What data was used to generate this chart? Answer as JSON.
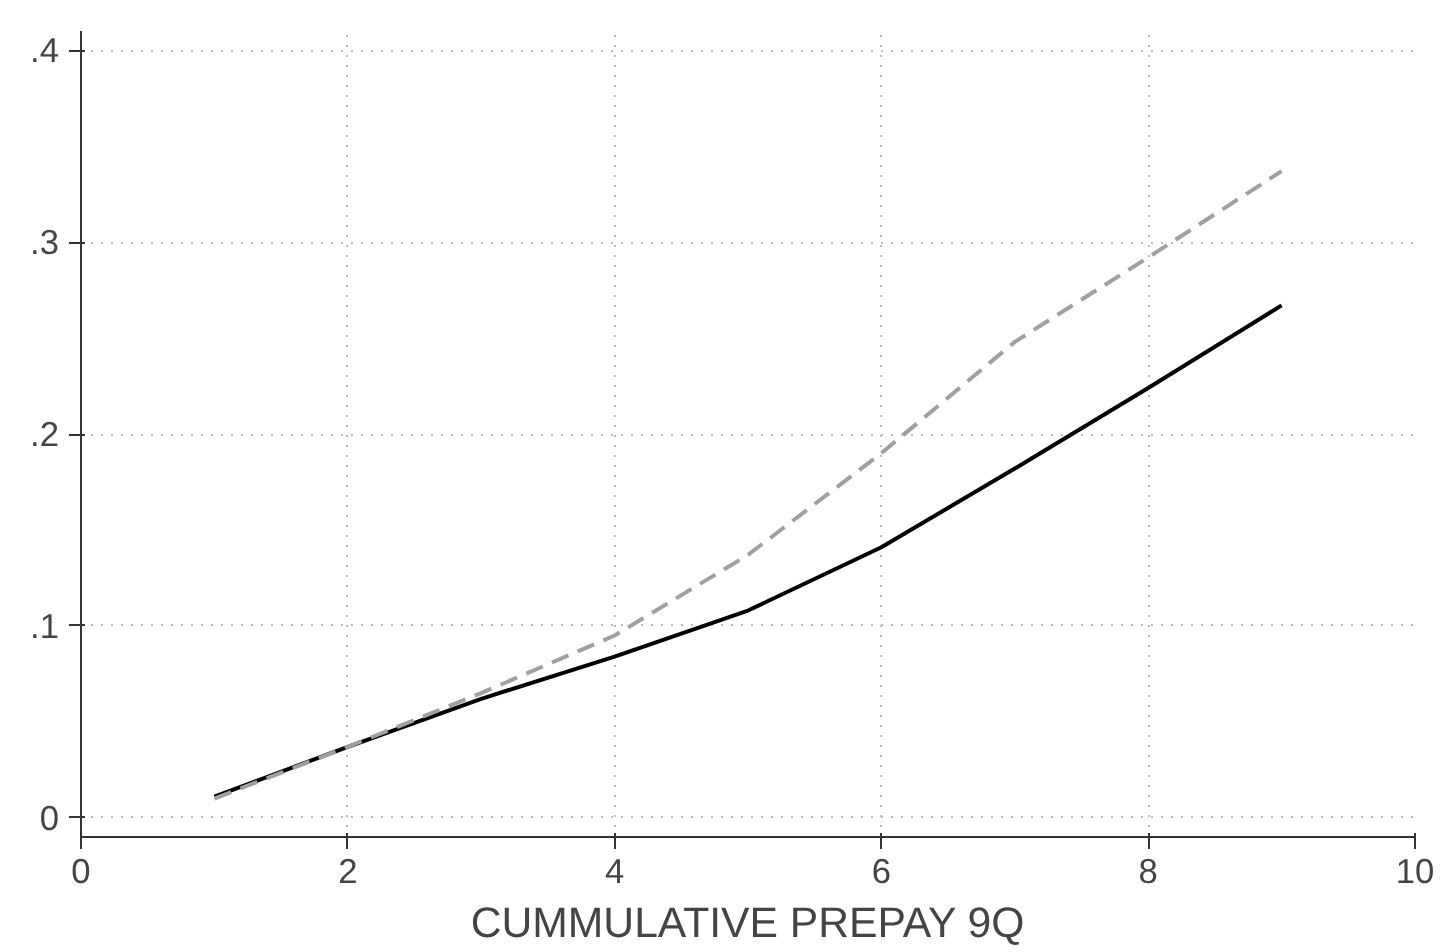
{
  "chart_data": {
    "type": "line",
    "xlabel": "CUMMULATIVE PREPAY 9Q",
    "x": [
      1,
      2,
      3,
      4,
      5,
      6,
      7,
      8,
      9
    ],
    "series": [
      {
        "color": "#000000",
        "line_style": "solid",
        "values": [
          0.011,
          0.037,
          0.062,
          0.084,
          0.108,
          0.141,
          0.182,
          0.224,
          0.267
        ]
      },
      {
        "color": "#a0a0a0",
        "line_style": "dashed",
        "values": [
          0.01,
          0.037,
          0.065,
          0.095,
          0.137,
          0.19,
          0.248,
          0.292,
          0.337
        ]
      }
    ],
    "xlim": [
      0,
      10
    ],
    "xticks": [
      0,
      2,
      4,
      6,
      8,
      10
    ],
    "ylim": [
      -0.01,
      0.41
    ],
    "yticks": [
      0,
      {
        "value": 0.1,
        "label": ".1"
      },
      {
        "value": 0.2,
        "label": ".2"
      },
      {
        "value": 0.3,
        "label": ".3"
      },
      {
        "value": 0.4,
        "label": ".4"
      }
    ],
    "grid": true,
    "marker": "none"
  }
}
